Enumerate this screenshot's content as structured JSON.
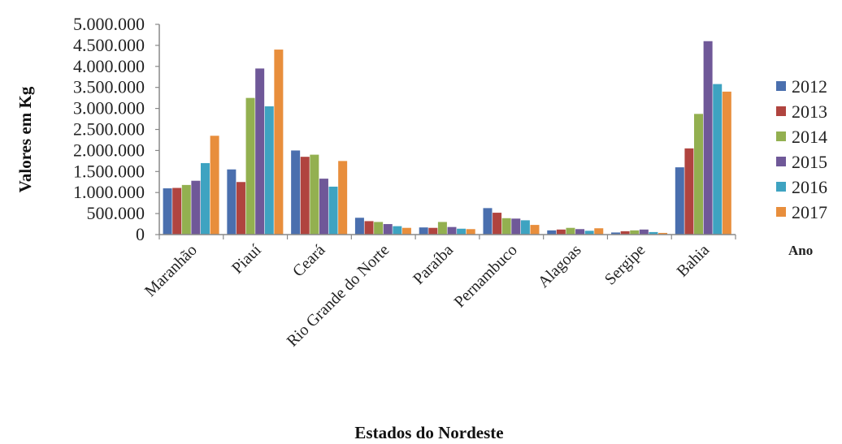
{
  "chart_data": {
    "type": "bar",
    "categories": [
      "Maranhão",
      "Piauí",
      "Ceará",
      "Rio Grande do Norte",
      "Paraíba",
      "Pernambuco",
      "Alagoas",
      "Sergipe",
      "Bahia"
    ],
    "series": [
      {
        "name": "2012",
        "color": "#4a6fae",
        "values": [
          1100000,
          1550000,
          2000000,
          400000,
          170000,
          630000,
          100000,
          50000,
          1600000
        ]
      },
      {
        "name": "2013",
        "color": "#b0443f",
        "values": [
          1110000,
          1250000,
          1850000,
          320000,
          160000,
          520000,
          120000,
          80000,
          2050000
        ]
      },
      {
        "name": "2014",
        "color": "#93b050",
        "values": [
          1180000,
          3250000,
          1900000,
          300000,
          300000,
          390000,
          160000,
          100000,
          2870000
        ]
      },
      {
        "name": "2015",
        "color": "#6f5898",
        "values": [
          1280000,
          3950000,
          1330000,
          250000,
          180000,
          380000,
          130000,
          120000,
          4600000
        ]
      },
      {
        "name": "2016",
        "color": "#3ea3c1",
        "values": [
          1700000,
          3050000,
          1140000,
          200000,
          140000,
          340000,
          90000,
          60000,
          3580000
        ]
      },
      {
        "name": "2017",
        "color": "#e88e3c",
        "values": [
          2350000,
          4400000,
          1750000,
          160000,
          130000,
          230000,
          150000,
          40000,
          3400000
        ]
      }
    ],
    "y_ticks": [
      "0",
      "500.000",
      "1.000.000",
      "1.500.000",
      "2.000.000",
      "2.500.000",
      "3.000.000",
      "3.500.000",
      "4.000.000",
      "4.500.000",
      "5.000.000"
    ],
    "ylim": [
      0,
      5000000
    ],
    "xlabel": "Estados do Nordeste",
    "ylabel": "Valores em Kg",
    "legend_title": "Ano",
    "legend_position": "right",
    "grid": false
  }
}
